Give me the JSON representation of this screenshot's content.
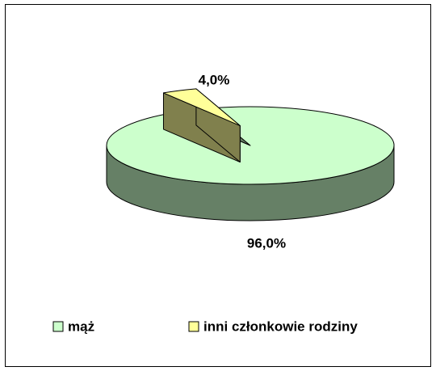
{
  "chart_data": {
    "type": "pie",
    "categories": [
      "mąż",
      "inni członkowie rodziny"
    ],
    "values": [
      96.0,
      4.0
    ],
    "value_labels": [
      "96,0%",
      "4,0%"
    ],
    "colors": [
      "#ccffcc",
      "#ffff99"
    ],
    "legend": "bottom"
  }
}
